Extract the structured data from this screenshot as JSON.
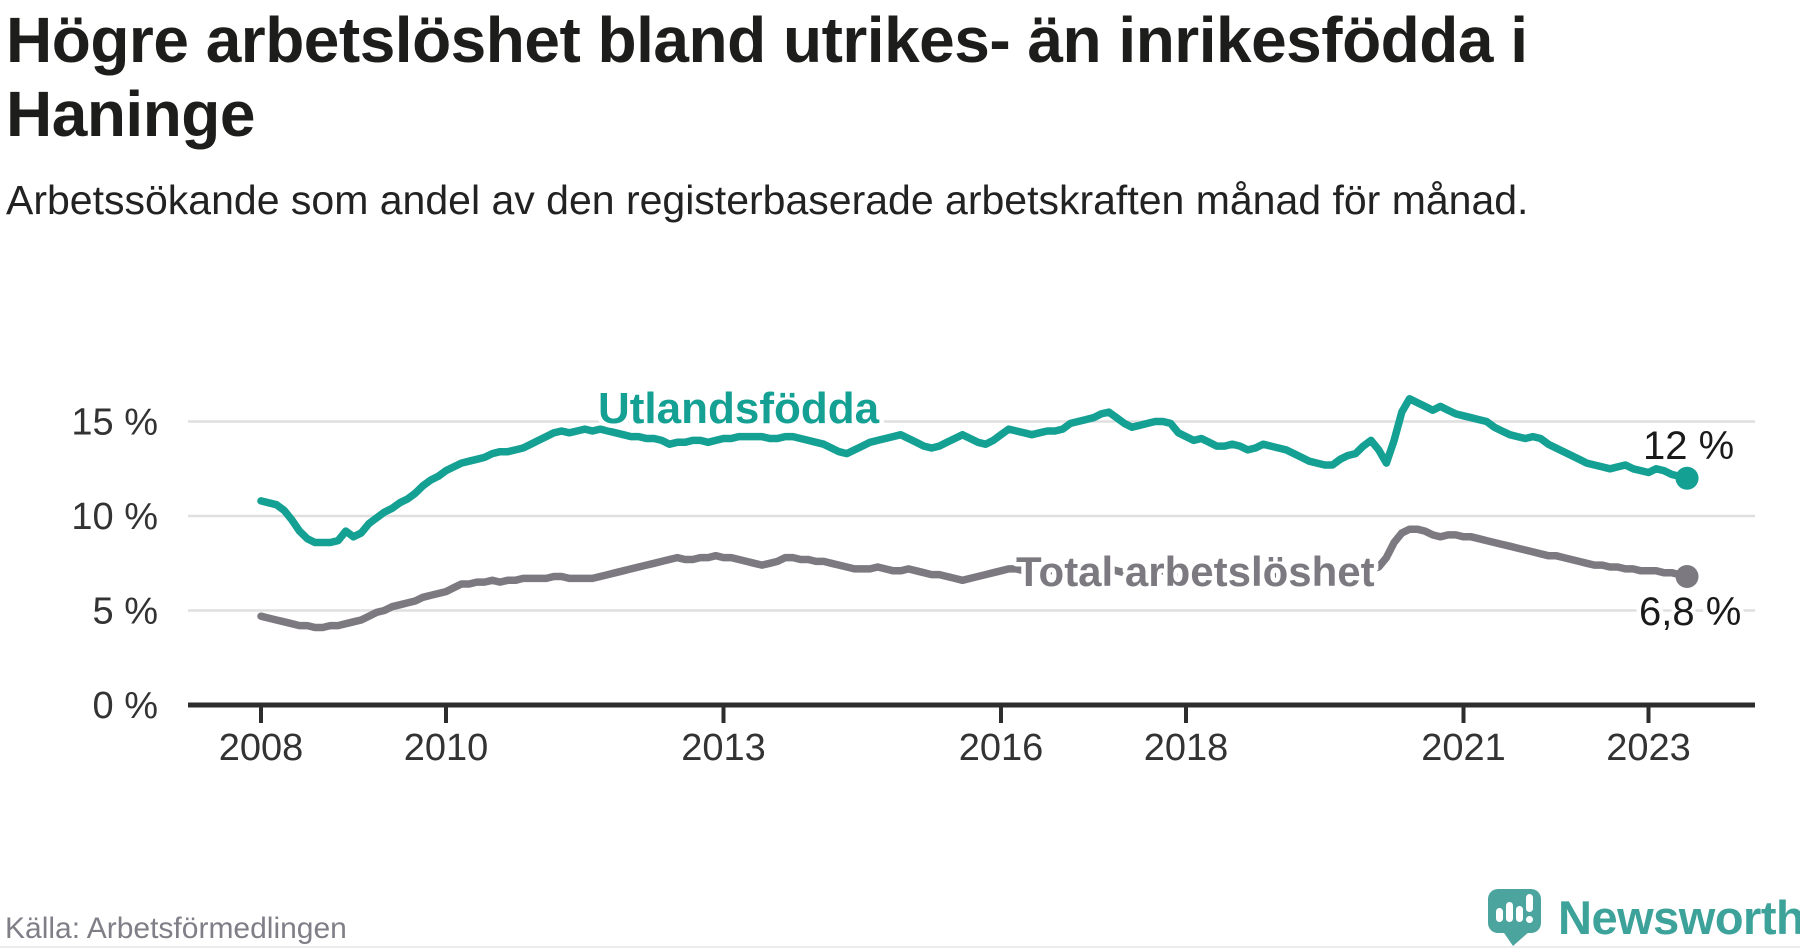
{
  "source": "Källa: Arbetsförmedlingen",
  "logo": {
    "text": "Newsworthy"
  },
  "colors": {
    "foreign_born_line": "#14a093",
    "total_line": "#7c7a80",
    "grid": "#dfdfdf",
    "axis": "#2d2d2d",
    "axis_text": "#333333",
    "value_text": "#1a1a1a",
    "logo_icon": "#4ba49d",
    "logo_text": "#3ca29a"
  },
  "chart_data": {
    "type": "line",
    "title": "Högre arbetslöshet bland utrikes- än inrikesfödda i Haninge",
    "subtitle": "Arbetssökande som andel av den registerbaserade arbetskraften månad för månad.",
    "unit": "%",
    "x_start_year": 2008,
    "x_step_months": 1,
    "x_axis_ticks": [
      2008,
      2010,
      2013,
      2016,
      2018,
      2021,
      2023
    ],
    "y_ticks": [
      {
        "value": 0,
        "label": "0 %"
      },
      {
        "value": 5,
        "label": "5 %"
      },
      {
        "value": 10,
        "label": "10 %"
      },
      {
        "value": 15,
        "label": "15 %"
      }
    ],
    "ylim": [
      0,
      17.6
    ],
    "xlim_years": [
      2007.21,
      2024.15
    ],
    "grid": "horizontal",
    "legend": "inline-labels",
    "series": [
      {
        "name": "Utlandsfödda",
        "color_key": "foreign_born_line",
        "end_label": "12 %",
        "end_value": 12.0,
        "values": [
          10.8,
          10.7,
          10.6,
          10.3,
          9.8,
          9.2,
          8.8,
          8.6,
          8.6,
          8.6,
          8.7,
          9.2,
          8.9,
          9.1,
          9.6,
          9.9,
          10.2,
          10.4,
          10.7,
          10.9,
          11.2,
          11.6,
          11.9,
          12.1,
          12.4,
          12.6,
          12.8,
          12.9,
          13.0,
          13.1,
          13.3,
          13.4,
          13.4,
          13.5,
          13.6,
          13.8,
          14.0,
          14.2,
          14.4,
          14.5,
          14.4,
          14.5,
          14.6,
          14.5,
          14.6,
          14.5,
          14.4,
          14.3,
          14.2,
          14.2,
          14.1,
          14.1,
          14.0,
          13.8,
          13.9,
          13.9,
          14.0,
          14.0,
          13.9,
          14.0,
          14.1,
          14.1,
          14.2,
          14.2,
          14.2,
          14.2,
          14.1,
          14.1,
          14.2,
          14.2,
          14.1,
          14.0,
          13.9,
          13.8,
          13.6,
          13.4,
          13.3,
          13.5,
          13.7,
          13.9,
          14.0,
          14.1,
          14.2,
          14.3,
          14.1,
          13.9,
          13.7,
          13.6,
          13.7,
          13.9,
          14.1,
          14.3,
          14.1,
          13.9,
          13.8,
          14.0,
          14.3,
          14.6,
          14.5,
          14.4,
          14.3,
          14.4,
          14.5,
          14.5,
          14.6,
          14.9,
          15.0,
          15.1,
          15.2,
          15.4,
          15.5,
          15.2,
          14.9,
          14.7,
          14.8,
          14.9,
          15.0,
          15.0,
          14.9,
          14.4,
          14.2,
          14.0,
          14.1,
          13.9,
          13.7,
          13.7,
          13.8,
          13.7,
          13.5,
          13.6,
          13.8,
          13.7,
          13.6,
          13.5,
          13.3,
          13.1,
          12.9,
          12.8,
          12.7,
          12.7,
          13.0,
          13.2,
          13.3,
          13.7,
          14.0,
          13.5,
          12.8,
          14.0,
          15.5,
          16.2,
          16.0,
          15.8,
          15.6,
          15.8,
          15.6,
          15.4,
          15.3,
          15.2,
          15.1,
          15.0,
          14.7,
          14.5,
          14.3,
          14.2,
          14.1,
          14.2,
          14.1,
          13.8,
          13.6,
          13.4,
          13.2,
          13.0,
          12.8,
          12.7,
          12.6,
          12.5,
          12.6,
          12.7,
          12.5,
          12.4,
          12.3,
          12.5,
          12.4,
          12.2,
          12.1,
          12.0
        ]
      },
      {
        "name": "Total arbetslöshet",
        "color_key": "total_line",
        "end_label": "6,8 %",
        "end_value": 6.8,
        "values": [
          4.7,
          4.6,
          4.5,
          4.4,
          4.3,
          4.2,
          4.2,
          4.1,
          4.1,
          4.2,
          4.2,
          4.3,
          4.4,
          4.5,
          4.7,
          4.9,
          5.0,
          5.2,
          5.3,
          5.4,
          5.5,
          5.7,
          5.8,
          5.9,
          6.0,
          6.2,
          6.4,
          6.4,
          6.5,
          6.5,
          6.6,
          6.5,
          6.6,
          6.6,
          6.7,
          6.7,
          6.7,
          6.7,
          6.8,
          6.8,
          6.7,
          6.7,
          6.7,
          6.7,
          6.8,
          6.9,
          7.0,
          7.1,
          7.2,
          7.3,
          7.4,
          7.5,
          7.6,
          7.7,
          7.8,
          7.7,
          7.7,
          7.8,
          7.8,
          7.9,
          7.8,
          7.8,
          7.7,
          7.6,
          7.5,
          7.4,
          7.5,
          7.6,
          7.8,
          7.8,
          7.7,
          7.7,
          7.6,
          7.6,
          7.5,
          7.4,
          7.3,
          7.2,
          7.2,
          7.2,
          7.3,
          7.2,
          7.1,
          7.1,
          7.2,
          7.1,
          7.0,
          6.9,
          6.9,
          6.8,
          6.7,
          6.6,
          6.7,
          6.8,
          6.9,
          7.0,
          7.1,
          7.2,
          7.2,
          7.1,
          7.0,
          7.0,
          7.1,
          7.1,
          7.0,
          7.0,
          7.1,
          7.1,
          7.1,
          7.2,
          7.2,
          7.1,
          7.0,
          6.9,
          7.0,
          7.0,
          7.1,
          7.1,
          7.0,
          7.0,
          6.9,
          6.9,
          6.8,
          6.8,
          6.7,
          6.7,
          6.8,
          6.8,
          6.7,
          6.7,
          6.8,
          6.8,
          6.8,
          6.7,
          6.7,
          6.6,
          6.6,
          6.6,
          6.7,
          6.7,
          6.8,
          6.9,
          7.0,
          7.1,
          7.2,
          7.3,
          7.8,
          8.6,
          9.1,
          9.3,
          9.3,
          9.2,
          9.0,
          8.9,
          9.0,
          9.0,
          8.9,
          8.9,
          8.8,
          8.7,
          8.6,
          8.5,
          8.4,
          8.3,
          8.2,
          8.1,
          8.0,
          7.9,
          7.9,
          7.8,
          7.7,
          7.6,
          7.5,
          7.4,
          7.4,
          7.3,
          7.3,
          7.2,
          7.2,
          7.1,
          7.1,
          7.1,
          7.0,
          7.0,
          6.9,
          6.8
        ]
      }
    ]
  }
}
